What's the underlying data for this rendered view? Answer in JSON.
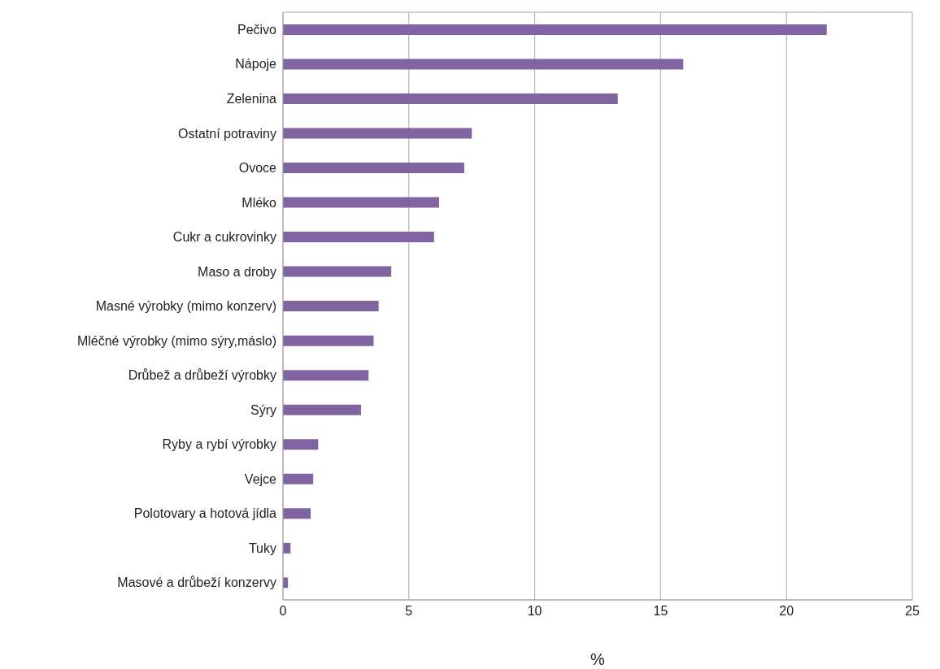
{
  "chart_data": {
    "type": "bar",
    "orientation": "horizontal",
    "xlabel": "%",
    "categories": [
      "Pečivo",
      "Nápoje",
      "Zelenina",
      "Ostatní potraviny",
      "Ovoce",
      "Mléko",
      "Cukr a cukrovinky",
      "Maso a droby",
      "Masné výrobky (mimo konzerv)",
      "Mléčné výrobky (mimo sýry,máslo)",
      "Drůbež a drůbeží výrobky",
      "Sýry",
      "Ryby a rybí výrobky",
      "Vejce",
      "Polotovary a hotová jídla",
      "Tuky",
      "Masové a drůbeží konzervy"
    ],
    "values": [
      21.6,
      15.9,
      13.3,
      7.5,
      7.2,
      6.2,
      6.0,
      4.3,
      3.8,
      3.6,
      3.4,
      3.1,
      1.4,
      1.2,
      1.1,
      0.3,
      0.2
    ],
    "color": "#8064a2",
    "xlim": [
      0,
      25
    ],
    "xticks": [
      0,
      5,
      10,
      15,
      20,
      25
    ],
    "grid": "x",
    "legend": false
  }
}
